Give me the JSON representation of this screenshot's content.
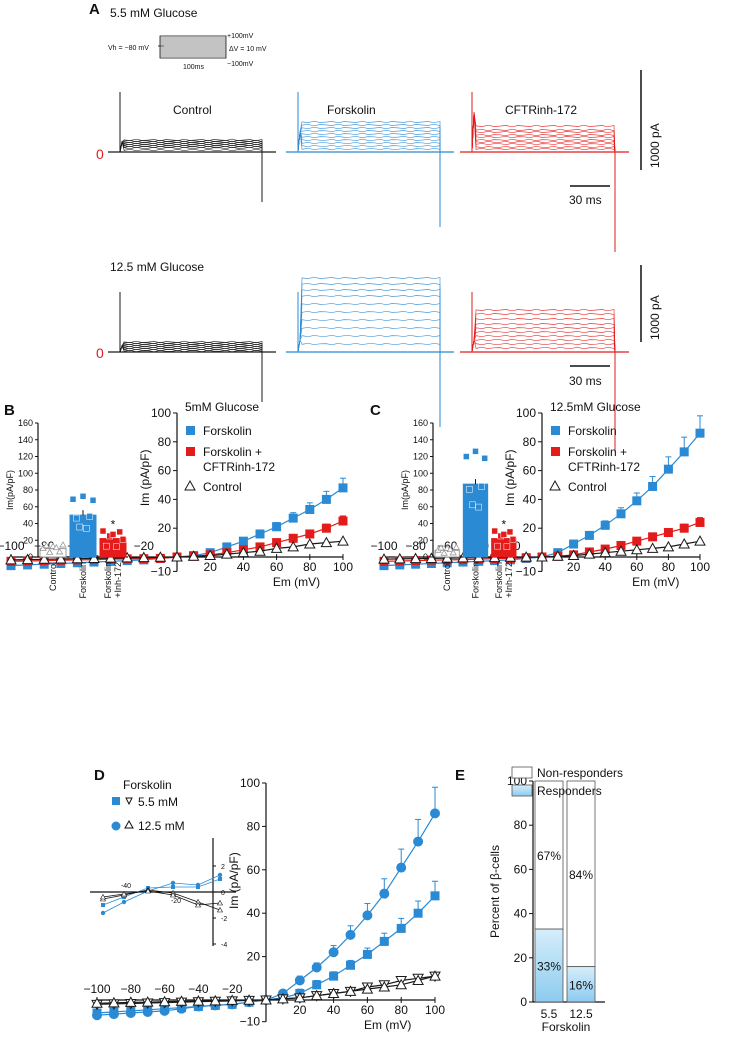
{
  "colors": {
    "black": "#1a1a1a",
    "blue": "#2a8ad4",
    "red": "#e31b1b",
    "gray": "#999999",
    "responder": "#b9def4"
  },
  "panelA": {
    "label": "A",
    "row1_title": "5.5 mM Glucose",
    "row2_title": "12.5 mM Glucose",
    "trace_titles": [
      "Control",
      "Forskolin",
      "CFTRinh-172"
    ],
    "zero": "0",
    "scale_y": "1000 pA",
    "scale_x": "30 ms",
    "protocol": {
      "vh": "Vh = −80 mV",
      "top": "+100mV",
      "dv": "ΔV = 10 mV",
      "bottom": "−100mV",
      "dur": "100ms"
    }
  },
  "chart_data": [
    {
      "id": "B",
      "type": "line",
      "title": "5mM Glucose",
      "panel": "B",
      "xlabel": "Em (mV)",
      "ylabel": "Im (pA/pF)",
      "x": [
        -100,
        -90,
        -80,
        -70,
        -60,
        -50,
        -40,
        -30,
        -20,
        -10,
        0,
        10,
        20,
        30,
        40,
        50,
        60,
        70,
        80,
        90,
        100
      ],
      "xlim": [
        -100,
        100
      ],
      "ylim": [
        -10,
        100
      ],
      "xticks": [
        "−100",
        "−80",
        "−60",
        "−40",
        "−20",
        "20",
        "40",
        "60",
        "80",
        "100"
      ],
      "yticks": [
        "−10",
        "20",
        "40",
        "60",
        "80",
        "100"
      ],
      "series": [
        {
          "name": "Forskolin",
          "marker": "square",
          "color": "#2a8ad4",
          "values": [
            -6,
            -5.5,
            -5,
            -4.5,
            -4,
            -3.5,
            -3,
            -2.5,
            -2,
            -1,
            0,
            1,
            3,
            7,
            11,
            16,
            21,
            27,
            33,
            40,
            48
          ]
        },
        {
          "name": "Forskolin + CFTRinh-172",
          "marker": "square",
          "color": "#e31b1b",
          "values": [
            -3,
            -2.8,
            -2.5,
            -2.3,
            -2,
            -1.8,
            -1.5,
            -1.3,
            -1.2,
            -1,
            0,
            0.5,
            1.5,
            3,
            5,
            7,
            10,
            13,
            16,
            20,
            25
          ]
        },
        {
          "name": "Control",
          "marker": "triangle",
          "color": "#1a1a1a",
          "values": [
            -2,
            -1.8,
            -1.6,
            -1.4,
            -1.2,
            -1,
            -0.8,
            -0.6,
            -0.4,
            -0.2,
            0,
            0.5,
            1,
            2,
            3,
            4,
            6,
            7,
            9,
            10,
            11
          ]
        }
      ],
      "inset": {
        "ylabel": "Im(pA/pF)",
        "ylim": [
          0,
          160
        ],
        "yticks": [
          "0",
          "20",
          "40",
          "60",
          "80",
          "100",
          "120",
          "140",
          "160"
        ],
        "categories": [
          "Control",
          "Forskolin",
          "Forskolin +Inh-172"
        ],
        "values": [
          10,
          50,
          22
        ],
        "star": "*"
      }
    },
    {
      "id": "C",
      "type": "line",
      "title": "12.5mM Glucose",
      "panel": "C",
      "xlabel": "Em (mV)",
      "ylabel": "Im (pA/pF)",
      "x": [
        -100,
        -90,
        -80,
        -70,
        -60,
        -50,
        -40,
        -30,
        -20,
        -10,
        0,
        10,
        20,
        30,
        40,
        50,
        60,
        70,
        80,
        90,
        100
      ],
      "xlim": [
        -100,
        100
      ],
      "ylim": [
        -10,
        100
      ],
      "xticks": [
        "−100",
        "−80",
        "−60",
        "−40",
        "−20",
        "20",
        "40",
        "60",
        "80",
        "100"
      ],
      "yticks": [
        "−10",
        "20",
        "40",
        "60",
        "80",
        "100"
      ],
      "series": [
        {
          "name": "Forskolin",
          "marker": "square",
          "color": "#2a8ad4",
          "values": [
            -6,
            -5.5,
            -5,
            -4.5,
            -4,
            -3.5,
            -3,
            -2.5,
            -2,
            -1,
            0,
            3,
            9,
            15,
            22,
            30,
            39,
            49,
            61,
            73,
            86
          ]
        },
        {
          "name": "Forskolin + CFTRinh-172",
          "marker": "square",
          "color": "#e31b1b",
          "values": [
            -3,
            -2.8,
            -2.5,
            -2.2,
            -2,
            -1.8,
            -1.5,
            -1.2,
            -1,
            -0.5,
            0,
            0.5,
            1.5,
            3.5,
            5.5,
            8,
            11,
            14,
            17,
            20,
            24
          ]
        },
        {
          "name": "Control",
          "marker": "triangle",
          "color": "#1a1a1a",
          "values": [
            -1.5,
            -1.3,
            -1.1,
            -1,
            -0.8,
            -0.6,
            -0.5,
            -0.4,
            -0.2,
            -0.1,
            0,
            0.5,
            1,
            2,
            3,
            4,
            5,
            6,
            7,
            9,
            11
          ]
        }
      ],
      "inset": {
        "ylabel": "Im(pA/pF)",
        "ylim": [
          0,
          160
        ],
        "yticks": [
          "0",
          "20",
          "40",
          "60",
          "80",
          "100",
          "120",
          "140",
          "160"
        ],
        "categories": [
          "Control",
          "Forskolin",
          "Forskolin +Inh-172"
        ],
        "values": [
          8,
          87,
          22
        ],
        "star": "*"
      }
    },
    {
      "id": "D",
      "type": "line",
      "title": "Forskolin",
      "panel": "D",
      "xlabel": "Em (mV)",
      "ylabel": "Im (pA/pF)",
      "x": [
        -100,
        -90,
        -80,
        -70,
        -60,
        -50,
        -40,
        -30,
        -20,
        -10,
        0,
        10,
        20,
        30,
        40,
        50,
        60,
        70,
        80,
        90,
        100
      ],
      "xlim": [
        -100,
        100
      ],
      "ylim": [
        -10,
        100
      ],
      "xticks": [
        "−100",
        "−80",
        "−60",
        "−40",
        "−20",
        "20",
        "40",
        "60",
        "80",
        "100"
      ],
      "yticks": [
        "−10",
        "20",
        "40",
        "60",
        "80",
        "100"
      ],
      "series": [
        {
          "name": "5.5 mM",
          "marker": "square",
          "color": "#2a8ad4",
          "values": [
            -6,
            -5.5,
            -5,
            -4.5,
            -4,
            -3.5,
            -3,
            -2.5,
            -2,
            -1,
            0,
            1,
            3,
            7,
            11,
            16,
            21,
            27,
            33,
            40,
            48
          ]
        },
        {
          "name": "12.5 mM",
          "marker": "circle",
          "color": "#2a8ad4",
          "values": [
            -7,
            -6.5,
            -6,
            -5.5,
            -5,
            -4,
            -3,
            -2.5,
            -2,
            -1,
            0,
            3,
            9,
            15,
            22,
            30,
            39,
            49,
            61,
            73,
            86
          ]
        },
        {
          "name": "5.5 mM control",
          "marker": "triangle-down",
          "color": "#1a1a1a",
          "values": [
            -2,
            -1.8,
            -1.6,
            -1.4,
            -1.2,
            -1,
            -0.8,
            -0.6,
            -0.4,
            -0.2,
            0,
            0.5,
            1,
            2,
            3,
            4,
            6,
            7,
            9,
            10,
            11
          ]
        },
        {
          "name": "12.5 mM control",
          "marker": "triangle",
          "color": "#1a1a1a",
          "values": [
            -1.5,
            -1.3,
            -1.1,
            -1,
            -0.8,
            -0.6,
            -0.5,
            -0.4,
            -0.2,
            -0.1,
            0,
            0.5,
            1,
            2,
            3,
            4,
            5,
            6,
            7,
            9,
            11
          ]
        }
      ],
      "legend": [
        "5.5 mM",
        "12.5 mM"
      ],
      "inset": {
        "yticks": [
          "2",
          "0",
          "-2",
          "-4"
        ],
        "xticks": [
          "-40",
          "-20"
        ]
      }
    },
    {
      "id": "E",
      "type": "bar",
      "panel": "E",
      "stacked": true,
      "ylabel": "Percent of β-cells",
      "xlabel": "Forskolin",
      "categories": [
        "5.5",
        "12.5"
      ],
      "ylim": [
        0,
        100
      ],
      "yticks": [
        "0",
        "20",
        "40",
        "60",
        "80",
        "100"
      ],
      "series": [
        {
          "name": "Responders",
          "values": [
            33,
            16
          ],
          "labels": [
            "33%",
            "16%"
          ]
        },
        {
          "name": "Non-responders",
          "values": [
            67,
            84
          ],
          "labels": [
            "67%",
            "84%"
          ]
        }
      ]
    }
  ]
}
